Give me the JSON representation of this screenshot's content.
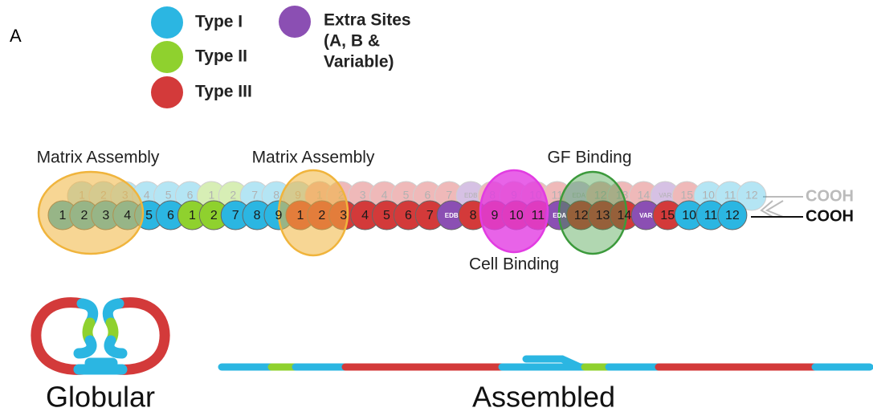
{
  "panel_label": "A",
  "legend": [
    {
      "label": "Type I",
      "color": "#2bb6e2"
    },
    {
      "label": "Type II",
      "color": "#8fd12e"
    },
    {
      "label": "Type III",
      "color": "#d33a3a"
    },
    {
      "label": [
        "Extra Sites",
        "(A, B &",
        "Variable)"
      ],
      "color": "#8b4fb3"
    }
  ],
  "regions": [
    {
      "label": "Matrix Assembly",
      "color": "#f0b43c"
    },
    {
      "label": "Matrix Assembly",
      "color": "#f0b43c"
    },
    {
      "label": "Cell Binding",
      "color": "#e23ce2"
    },
    {
      "label": "GF Binding",
      "color": "#3c9a3c"
    }
  ],
  "chain": {
    "front": [
      {
        "label": "1",
        "color": "#2bb6e2"
      },
      {
        "label": "2",
        "color": "#2bb6e2"
      },
      {
        "label": "3",
        "color": "#2bb6e2"
      },
      {
        "label": "4",
        "color": "#2bb6e2"
      },
      {
        "label": "5",
        "color": "#2bb6e2"
      },
      {
        "label": "6",
        "color": "#2bb6e2"
      },
      {
        "label": "1",
        "color": "#8fd12e"
      },
      {
        "label": "2",
        "color": "#8fd12e"
      },
      {
        "label": "7",
        "color": "#2bb6e2"
      },
      {
        "label": "8",
        "color": "#2bb6e2"
      },
      {
        "label": "9",
        "color": "#2bb6e2"
      },
      {
        "label": "1",
        "color": "#d33a3a"
      },
      {
        "label": "2",
        "color": "#d33a3a"
      },
      {
        "label": "3",
        "color": "#d33a3a"
      },
      {
        "label": "4",
        "color": "#d33a3a"
      },
      {
        "label": "5",
        "color": "#d33a3a"
      },
      {
        "label": "6",
        "color": "#d33a3a"
      },
      {
        "label": "7",
        "color": "#d33a3a"
      },
      {
        "label": "EDB",
        "color": "#8b4fb3"
      },
      {
        "label": "8",
        "color": "#d33a3a"
      },
      {
        "label": "9",
        "color": "#d33a3a"
      },
      {
        "label": "10",
        "color": "#d33a3a"
      },
      {
        "label": "11",
        "color": "#d33a3a"
      },
      {
        "label": "EDA",
        "color": "#8b4fb3"
      },
      {
        "label": "12",
        "color": "#d33a3a"
      },
      {
        "label": "13",
        "color": "#d33a3a"
      },
      {
        "label": "14",
        "color": "#d33a3a"
      },
      {
        "label": "VAR",
        "color": "#8b4fb3"
      },
      {
        "label": "15",
        "color": "#d33a3a"
      },
      {
        "label": "10",
        "color": "#2bb6e2"
      },
      {
        "label": "11",
        "color": "#2bb6e2"
      },
      {
        "label": "12",
        "color": "#2bb6e2"
      }
    ],
    "back": [
      "1",
      "2",
      "3",
      "4",
      "5",
      "6",
      "1",
      "2",
      "7",
      "8",
      "9",
      "1",
      "2",
      "3",
      "4",
      "5",
      "6",
      "7",
      "EDB",
      "8",
      "9",
      "10",
      "11",
      "EDA",
      "12",
      "13",
      "14",
      "VAR",
      "15",
      "10",
      "11",
      "12"
    ],
    "terminus_back": "COOH",
    "terminus_front": "COOH"
  },
  "conformations": [
    "Globular",
    "Assembled"
  ]
}
